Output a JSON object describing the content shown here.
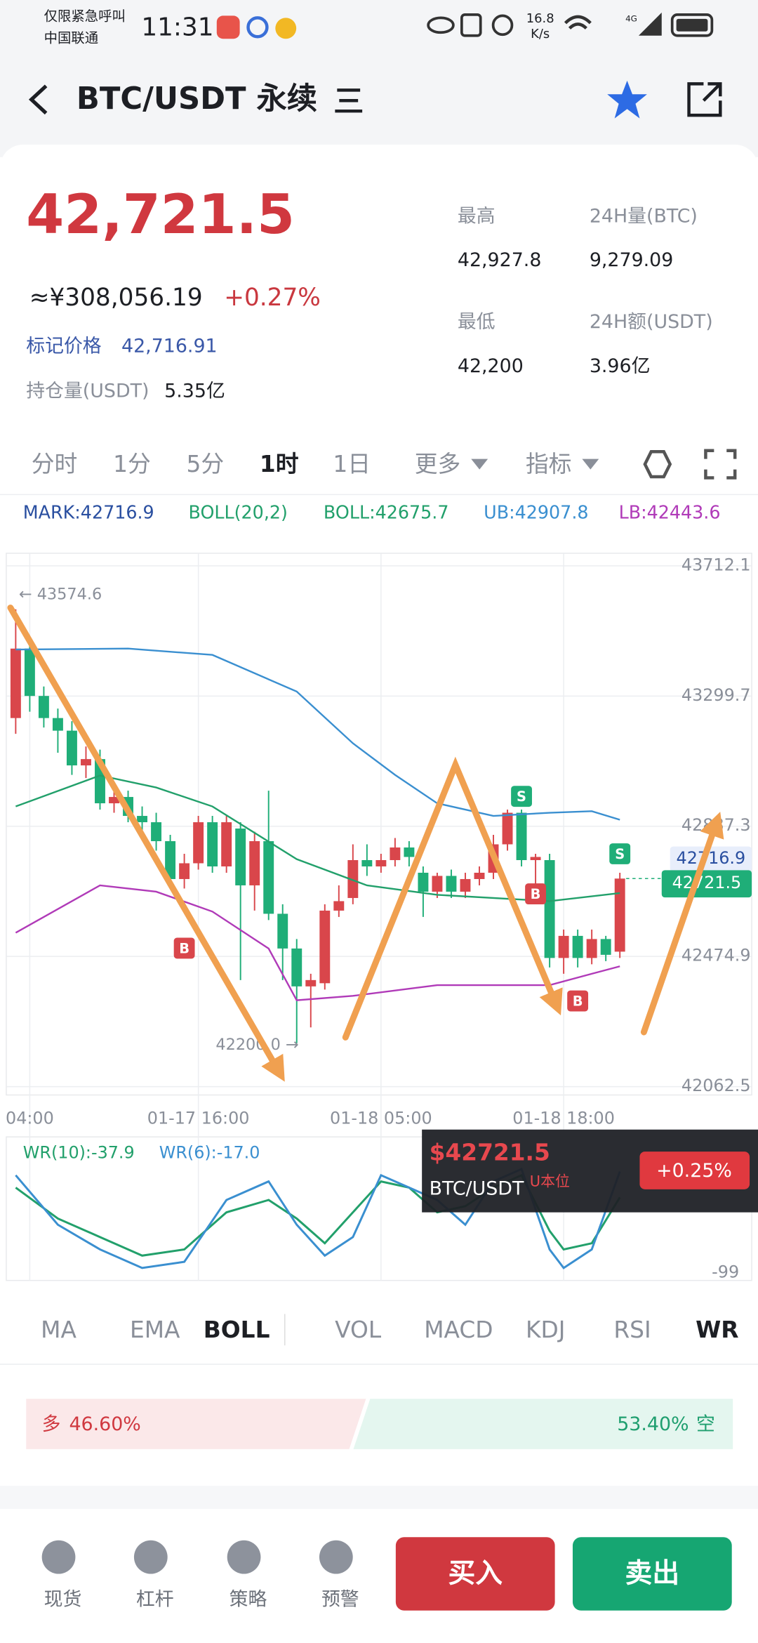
{
  "status_bar": {
    "carrier_line1": "仅限紧急呼叫",
    "carrier_line2": "中国联通",
    "time": "11:31",
    "speed": "16.8",
    "speed_unit": "K/s",
    "network": "4G"
  },
  "header": {
    "title": "BTC/USDT 永续"
  },
  "ticker": {
    "price": "42,721.5",
    "cny": "≈¥308,056.19",
    "change": "+0.27%",
    "mark_label": "标记价格",
    "mark_value": "42,716.91",
    "oi_label": "持仓量(USDT)",
    "oi_value": "5.35亿",
    "stats": [
      {
        "label": "最高",
        "value": "42,927.8"
      },
      {
        "label": "24H量(BTC)",
        "value": "9,279.09"
      },
      {
        "label": "最低",
        "value": "42,200"
      },
      {
        "label": "24H额(USDT)",
        "value": "3.96亿"
      }
    ]
  },
  "timeframes": {
    "items": [
      "分时",
      "1分",
      "5分",
      "1时",
      "1日",
      "更多",
      "指标"
    ],
    "active": 3
  },
  "indicator_header": [
    {
      "text": "MARK:42716.9",
      "color": "#2a4fa0"
    },
    {
      "text": "BOLL(20,2)",
      "color": "#22a06b"
    },
    {
      "text": "BOLL:42675.7",
      "color": "#22a06b"
    },
    {
      "text": "UB:42907.8",
      "color": "#3a8fd0"
    },
    {
      "text": "LB:42443.6",
      "color": "#b03ab8"
    }
  ],
  "chart_data": [
    {
      "type": "candlestick",
      "categories": [
        null,
        "04:00",
        null,
        null,
        null,
        null,
        null,
        null,
        null,
        null,
        null,
        null,
        null,
        "01-17 16:00",
        null,
        null,
        null,
        null,
        null,
        null,
        null,
        null,
        null,
        null,
        null,
        null,
        "01-18 05:00",
        null,
        null,
        null,
        null,
        null,
        null,
        null,
        null,
        null,
        null,
        null,
        null,
        "01-18 18:00",
        null,
        null,
        null,
        null
      ],
      "open": [
        43230,
        43450,
        43300,
        43230,
        43190,
        43080,
        43100,
        42960,
        42980,
        42920,
        42900,
        42840,
        42720,
        42770,
        42900,
        42760,
        42880,
        42700,
        42840,
        42610,
        42500,
        42380,
        42390,
        42620,
        42660,
        42780,
        42760,
        42780,
        42820,
        42740,
        42680,
        42730,
        42680,
        42720,
        42740,
        42830,
        42930,
        42780,
        42780,
        42470,
        42540,
        42470,
        42530,
        42490
      ],
      "high": [
        43574.6,
        43470,
        43330,
        43260,
        43220,
        43140,
        43130,
        43010,
        43000,
        42950,
        42930,
        42860,
        42800,
        42920,
        42920,
        42920,
        42900,
        42870,
        43000,
        42640,
        42530,
        42420,
        42640,
        42700,
        42830,
        42830,
        42800,
        42850,
        42840,
        42760,
        42740,
        42750,
        42740,
        42760,
        42860,
        42940,
        42940,
        42800,
        42800,
        42560,
        42560,
        42560,
        42540,
        42740
      ],
      "low": [
        43180,
        43250,
        43200,
        43120,
        43050,
        43040,
        42940,
        42930,
        42900,
        42870,
        42810,
        42700,
        42690,
        42750,
        42740,
        42740,
        42400,
        42620,
        42590,
        42400,
        42200,
        42250,
        42370,
        42600,
        42640,
        42730,
        42740,
        42760,
        42760,
        42600,
        42660,
        42660,
        42660,
        42700,
        42720,
        42810,
        42760,
        42700,
        42440,
        42420,
        42440,
        42450,
        42460,
        42470
      ],
      "close": [
        43450,
        43300,
        43230,
        43190,
        43080,
        43100,
        42960,
        42980,
        42920,
        42900,
        42840,
        42720,
        42770,
        42900,
        42760,
        42900,
        42700,
        42840,
        42610,
        42500,
        42380,
        42400,
        42620,
        42650,
        42780,
        42760,
        42780,
        42820,
        42790,
        42680,
        42730,
        42680,
        42720,
        42740,
        42830,
        42930,
        42780,
        42790,
        42470,
        42540,
        42470,
        42530,
        42480,
        42721.5
      ],
      "up_color": "#d9464b",
      "down_color": "#1fae78",
      "series": [
        {
          "color": "#3a8fd0",
          "x": [
            0,
            8,
            14,
            20,
            24,
            27,
            30,
            34,
            38,
            41,
            43
          ],
          "values": [
            43447,
            43450,
            43430,
            43314,
            43150,
            43050,
            42960,
            42920,
            42930,
            42935,
            42907.8
          ]
        },
        {
          "color": "#22a06b",
          "x": [
            0,
            6,
            10,
            14,
            20,
            25,
            30,
            38,
            43
          ],
          "values": [
            42950,
            43048,
            43010,
            42950,
            42783,
            42700,
            42670,
            42650,
            42675.7
          ]
        },
        {
          "color": "#b03ab8",
          "x": [
            0,
            6,
            10,
            14,
            18,
            20,
            24,
            30,
            38,
            41,
            43
          ],
          "values": [
            42550,
            42700,
            42680,
            42617,
            42500,
            42336,
            42350,
            42384,
            42384,
            42420,
            42443.6
          ]
        }
      ],
      "ylim": [
        42036,
        43752
      ],
      "yticks": [
        43712.1,
        43299.7,
        42887.3,
        42474.9,
        42062.5
      ],
      "grid": true,
      "high_note": {
        "value": 43574.6,
        "label": "← 43574.6"
      },
      "low_note": {
        "value": 42200,
        "label": "42200.0 →"
      },
      "mark_price": 42716.9,
      "last_price": 42721.5,
      "signals": [
        {
          "label": "B",
          "index": 12,
          "price": 42501
        },
        {
          "label": "S",
          "index": 36,
          "price": 42982
        },
        {
          "label": "B",
          "index": 37,
          "price": 42673
        },
        {
          "label": "B",
          "index": 40,
          "price": 42334
        },
        {
          "label": "S",
          "index": 43,
          "price": 42800
        }
      ]
    },
    {
      "type": "line",
      "x": [
        0,
        3,
        6,
        9,
        12,
        15,
        18,
        20,
        22,
        24,
        26,
        28,
        30,
        32,
        34,
        36,
        38,
        39,
        41,
        43
      ],
      "series": [
        {
          "name": "WR(10):-37.9",
          "color": "#22a06b",
          "values": [
            -30,
            -55,
            -70,
            -85,
            -80,
            -50,
            -40,
            -55,
            -75,
            -50,
            -25,
            -30,
            -50,
            -45,
            -30,
            -20,
            -65,
            -80,
            -75,
            -37.9
          ]
        },
        {
          "name": "WR(6):-17.0",
          "color": "#3a8fd0",
          "values": [
            -20,
            -60,
            -80,
            -95,
            -90,
            -40,
            -25,
            -60,
            -85,
            -70,
            -20,
            -30,
            -40,
            -60,
            -25,
            -15,
            -80,
            -95,
            -80,
            -17.0
          ]
        }
      ],
      "ylim": [
        -100,
        0
      ],
      "yticks": [
        -99
      ]
    }
  ],
  "floating_ticker": {
    "price": "$42721.5",
    "pair": "BTC/USDT",
    "tag": "U本位",
    "change": "+0.25%"
  },
  "indicator_tabs": {
    "items": [
      "MA",
      "EMA",
      "BOLL",
      "VOL",
      "MACD",
      "KDJ",
      "RSI",
      "WR"
    ],
    "active": [
      2,
      7
    ]
  },
  "sentiment": {
    "long": {
      "label": "多",
      "value": 46.6,
      "value_label": "46.60%"
    },
    "short": {
      "label": "空",
      "value": 53.4,
      "value_label": "53.40%"
    }
  },
  "bottom_nav": {
    "items": [
      "现货",
      "杠杆",
      "策略",
      "预警"
    ],
    "buy": "买入",
    "sell": "卖出"
  }
}
